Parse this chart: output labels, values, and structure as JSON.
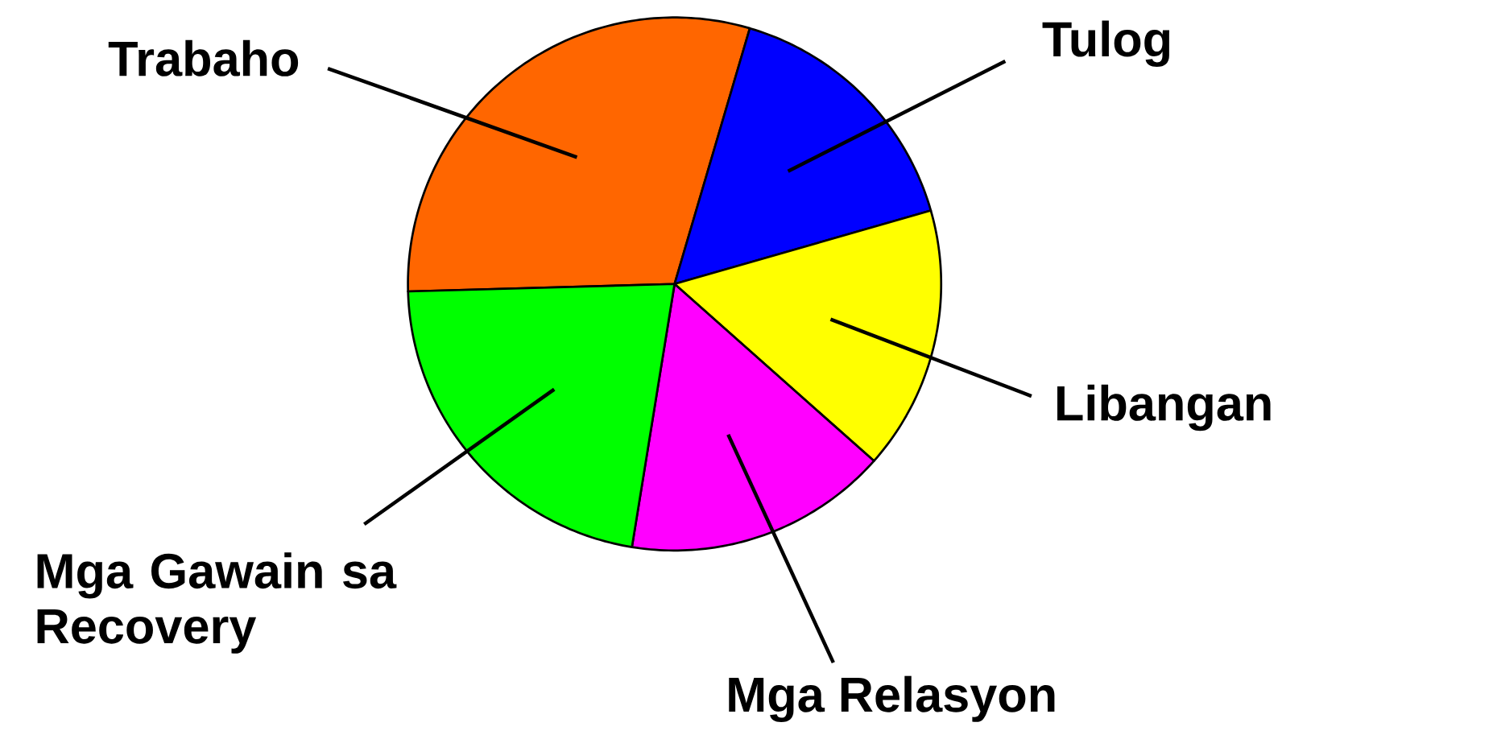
{
  "chart_data": {
    "type": "pie",
    "categories": [
      "Trabaho",
      "Tulog",
      "Libangan",
      "Mga Relasyon",
      "Mga Gawain sa Recovery"
    ],
    "values": [
      30,
      16,
      16,
      16,
      22
    ],
    "colors": [
      "#ff6600",
      "#0000ff",
      "#ffff00",
      "#ff00ff",
      "#00ff00"
    ]
  }
}
